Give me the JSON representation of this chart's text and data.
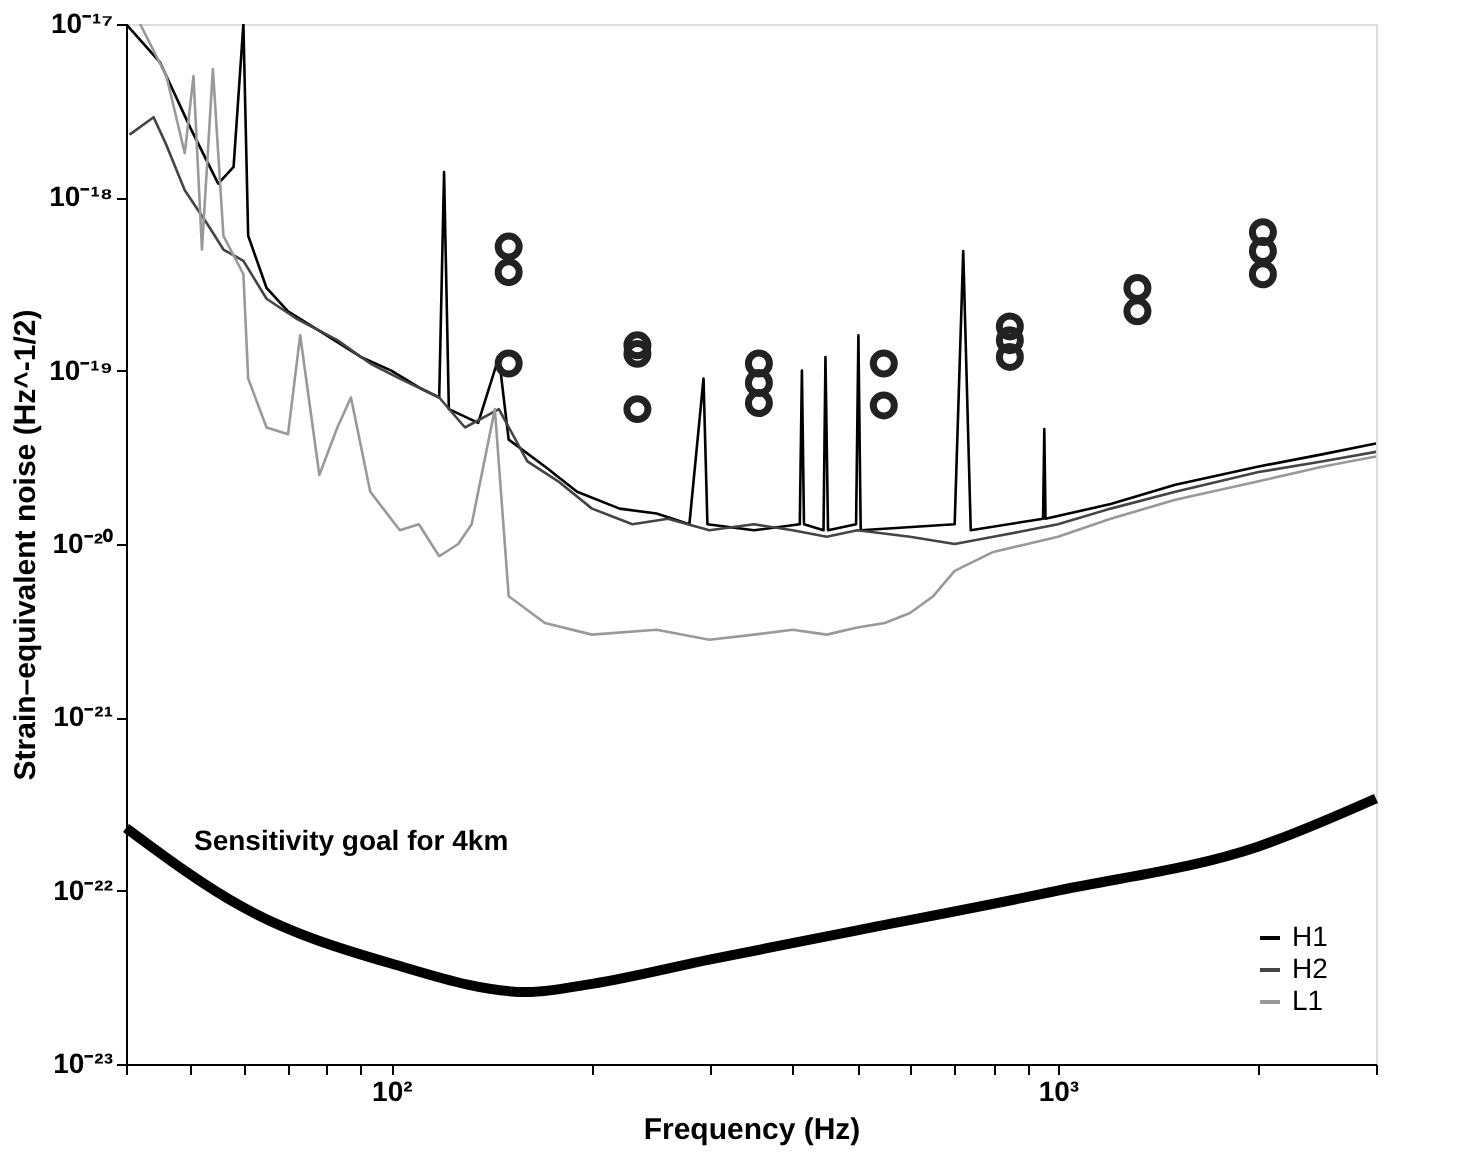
{
  "chart_data": {
    "type": "line",
    "xlabel": "Frequency (Hz)",
    "ylabel": "Strain–equivalent noise (Hz^-1/2)",
    "log": "xy",
    "grid": false,
    "legend": "bottom right",
    "line_style": "solid",
    "xlim": [
      40,
      3000
    ],
    "ylim": [
      1e-23,
      1e-17
    ],
    "xticks": [
      {
        "value": 40,
        "label": null
      },
      {
        "value": 50,
        "label": null
      },
      {
        "value": 60,
        "label": null
      },
      {
        "value": 70,
        "label": null
      },
      {
        "value": 80,
        "label": null
      },
      {
        "value": 90,
        "label": null
      },
      {
        "value": 100,
        "label": "10²"
      },
      {
        "value": 200,
        "label": null
      },
      {
        "value": 300,
        "label": null
      },
      {
        "value": 400,
        "label": null
      },
      {
        "value": 500,
        "label": null
      },
      {
        "value": 600,
        "label": null
      },
      {
        "value": 700,
        "label": null
      },
      {
        "value": 800,
        "label": null
      },
      {
        "value": 900,
        "label": null
      },
      {
        "value": 1000,
        "label": "10³"
      },
      {
        "value": 2000,
        "label": null
      },
      {
        "value": 3000,
        "label": null
      }
    ],
    "yticks": [
      {
        "value": 1e-23,
        "label": "10⁻²³"
      },
      {
        "value": 1e-22,
        "label": "10⁻²²"
      },
      {
        "value": 1e-21,
        "label": "10⁻²¹"
      },
      {
        "value": 1e-20,
        "label": "10⁻²⁰"
      },
      {
        "value": 1e-19,
        "label": "10⁻¹⁹"
      },
      {
        "value": 1e-18,
        "label": "10⁻¹⁸"
      },
      {
        "value": 1e-17,
        "label": "10⁻¹⁷"
      }
    ],
    "annotations": [
      "Sensitivity goal for 4km"
    ],
    "series": [
      {
        "name": "H1",
        "color": "#000000",
        "x": [
          40,
          45,
          50,
          55,
          58,
          60,
          61,
          65,
          70,
          80,
          90,
          100,
          110,
          118,
          120,
          122,
          135,
          145,
          150,
          170,
          190,
          220,
          250,
          280,
          294,
          298,
          350,
          410,
          413,
          416,
          445,
          448,
          452,
          498,
          502,
          506,
          700,
          721,
          740,
          950,
          954,
          958,
          1200,
          1500,
          2000,
          2500,
          3000
        ],
        "values": [
          1e-17,
          6e-18,
          2.5e-18,
          1.2e-18,
          1.5e-18,
          1e-17,
          6e-19,
          3e-19,
          2.2e-19,
          1.6e-19,
          1.2e-19,
          1e-19,
          8e-20,
          7e-20,
          1.4e-18,
          6e-20,
          5e-20,
          1.2e-19,
          4e-20,
          2.8e-20,
          2e-20,
          1.6e-20,
          1.5e-20,
          1.3e-20,
          9e-20,
          1.3e-20,
          1.2e-20,
          1.3e-20,
          1e-19,
          1.3e-20,
          1.2e-20,
          1.2e-19,
          1.2e-20,
          1.3e-20,
          1.6e-19,
          1.2e-20,
          1.3e-20,
          4.9e-19,
          1.2e-20,
          1.4e-20,
          4.6e-20,
          1.4e-20,
          1.7e-20,
          2.2e-20,
          2.8e-20,
          3.3e-20,
          3.8e-20
        ]
      },
      {
        "name": "H2",
        "color": "#444444",
        "x": [
          40.5,
          44,
          46,
          49,
          53,
          56,
          60,
          65,
          72,
          83,
          93,
          103,
          118,
          129,
          145,
          160,
          178,
          200,
          230,
          260,
          300,
          350,
          400,
          450,
          500,
          600,
          700,
          800,
          900,
          1000,
          1200,
          1500,
          2000,
          2500,
          3000
        ],
        "values": [
          2.3e-18,
          2.9e-18,
          2e-18,
          1.1e-18,
          7e-19,
          5e-19,
          4.3e-19,
          2.6e-19,
          2e-19,
          1.5e-19,
          1.1e-19,
          9e-20,
          7e-20,
          4.7e-20,
          6e-20,
          3e-20,
          2.3e-20,
          1.6e-20,
          1.3e-20,
          1.4e-20,
          1.2e-20,
          1.3e-20,
          1.2e-20,
          1.1e-20,
          1.2e-20,
          1.1e-20,
          1e-20,
          1.1e-20,
          1.2e-20,
          1.3e-20,
          1.6e-20,
          2e-20,
          2.6e-20,
          3e-20,
          3.4e-20
        ]
      },
      {
        "name": "L1",
        "color": "#999999",
        "x": [
          42,
          46,
          49,
          50.5,
          52,
          54,
          56,
          60,
          61,
          65,
          70,
          73,
          78,
          83,
          87,
          93,
          103,
          110,
          118,
          126,
          132,
          143,
          150,
          170,
          200,
          250,
          300,
          350,
          400,
          450,
          500,
          550,
          600,
          650,
          700,
          800,
          900,
          1000,
          1200,
          1500,
          2000,
          2500,
          3000
        ],
        "values": [
          1e-17,
          5e-18,
          1.8e-18,
          5e-18,
          5e-19,
          5.5e-18,
          6e-19,
          3.6e-19,
          9e-20,
          4.7e-20,
          4.3e-20,
          1.6e-19,
          2.5e-20,
          4.7e-20,
          7e-20,
          2e-20,
          1.2e-20,
          1.3e-20,
          8.5e-21,
          1e-20,
          1.3e-20,
          6e-20,
          5e-21,
          3.5e-21,
          3e-21,
          3.2e-21,
          2.8e-21,
          3e-21,
          3.2e-21,
          3e-21,
          3.3e-21,
          3.5e-21,
          4e-21,
          5e-21,
          7e-21,
          9e-21,
          1e-20,
          1.1e-20,
          1.4e-20,
          1.8e-20,
          2.3e-20,
          2.8e-20,
          3.2e-20
        ]
      },
      {
        "color": "#000000",
        "x": [
          40,
          60,
          100,
          160,
          200,
          300,
          500,
          1000,
          2000,
          3000
        ],
        "values": [
          2.3e-22,
          8e-23,
          3.8e-23,
          2.6e-23,
          2.9e-23,
          4e-23,
          5.9e-23,
          1e-22,
          1.8e-22,
          3.4e-22
        ]
      },
      {
        "type": "scatter",
        "marker": "circle",
        "color": "#222222",
        "x": [
          150,
          150,
          150,
          234,
          234,
          234,
          356,
          356,
          356,
          548,
          548,
          847,
          847,
          847,
          1316,
          1316,
          2030,
          2030,
          2030
        ],
        "values": [
          5.2e-19,
          3.7e-19,
          1.1e-19,
          1.4e-19,
          1.25e-19,
          6e-20,
          1.1e-19,
          8.5e-20,
          6.5e-20,
          1.1e-19,
          6.3e-20,
          1.8e-19,
          1.5e-19,
          1.2e-19,
          3e-19,
          2.2e-19,
          6.3e-19,
          4.9e-19,
          3.6e-19
        ]
      }
    ]
  }
}
